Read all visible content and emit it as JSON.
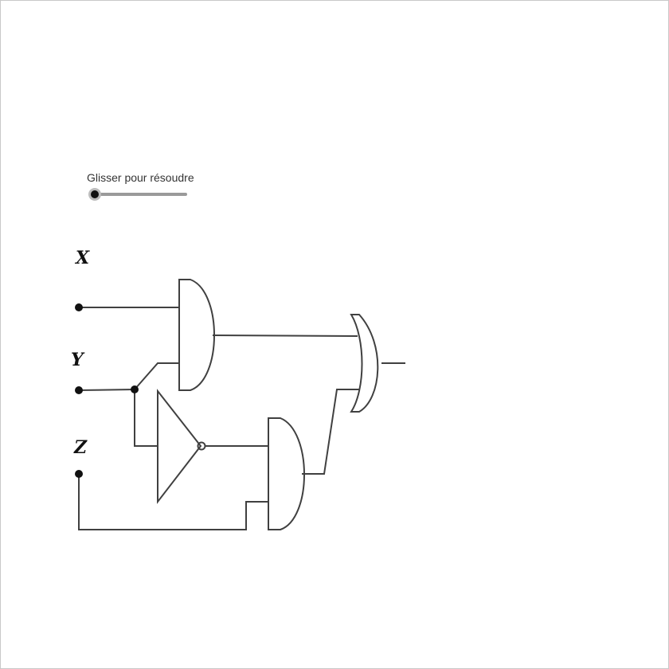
{
  "slider": {
    "label": "Glisser pour résoudre",
    "value": 0
  },
  "inputs": {
    "x_label": "X",
    "y_label": "Y",
    "z_label": "Z"
  },
  "gates": [
    "and-gate",
    "not-gate",
    "and-gate",
    "or-gate"
  ],
  "colors": {
    "wire": "#404040",
    "node": "#111111",
    "slider_track": "#9a9a9a"
  }
}
